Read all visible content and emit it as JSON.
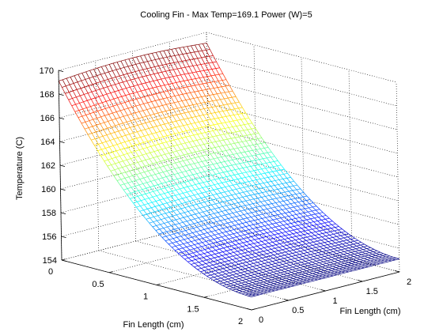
{
  "figure": {
    "background": "#ffffff"
  },
  "chart_data": {
    "type": "surface",
    "title": "Cooling Fin - Max Temp=169.1 Power (W)=5",
    "xlabel": "Fin Length (cm)",
    "ylabel": "Fin Length (cm)",
    "zlabel": "Temperature (C)",
    "x_range": [
      0,
      2
    ],
    "y_range": [
      0,
      2
    ],
    "zlim": [
      154,
      170
    ],
    "x_ticks": [
      "0",
      "0.5",
      "1",
      "1.5",
      "2"
    ],
    "y_ticks": [
      "0",
      "0.5",
      "1",
      "1.5",
      "2"
    ],
    "z_ticks": [
      "154",
      "156",
      "158",
      "160",
      "162",
      "164",
      "166",
      "168",
      "170"
    ],
    "grid": true,
    "render": "mesh",
    "colormap": "jet",
    "max_temp": 169.1,
    "min_temp": 155.1,
    "power_w": 5,
    "surface": {
      "description_model": "T(x) = T_min + (T_max - T_min) * (1 - x/2)^2 along x; nearly constant along y",
      "x": [
        0,
        0.25,
        0.5,
        0.75,
        1,
        1.25,
        1.5,
        1.75,
        2
      ],
      "T_along_x": [
        169.1,
        166.0,
        163.0,
        160.7,
        158.6,
        157.0,
        155.9,
        155.3,
        155.1
      ]
    }
  }
}
